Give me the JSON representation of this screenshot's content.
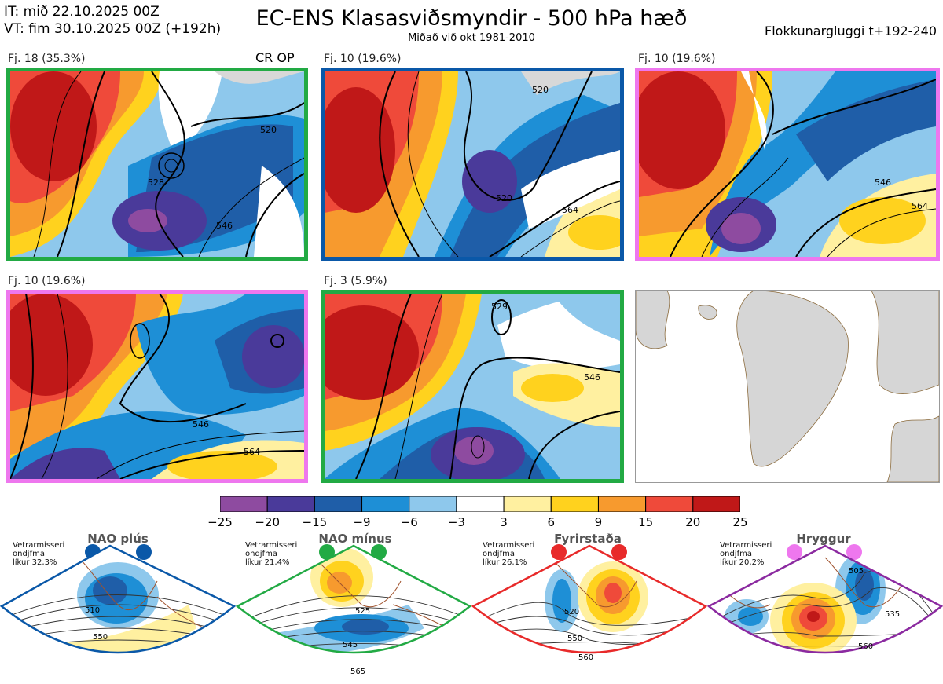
{
  "header": {
    "it_line": "IT: mið 22.10.2025 00Z",
    "vt_line": "VT: fim 30.10.2025 00Z  (+192h)",
    "title": "EC-ENS Klasasviðsmyndir - 500 hPa hæð",
    "subtitle": "Miðað við okt 1981-2010",
    "window": "Flokkunargluggi t+192-240"
  },
  "panels": [
    {
      "label": "Fj. 18 (35.3%)",
      "tag": "CR OP",
      "color": "#22aa44"
    },
    {
      "label": "Fj. 10 (19.6%)",
      "tag": "",
      "color": "#0a58a8"
    },
    {
      "label": "Fj. 10 (19.6%)",
      "tag": "",
      "color": "#ee77ee"
    },
    {
      "label": "Fj. 10 (19.6%)",
      "tag": "",
      "color": "#ee77ee"
    },
    {
      "label": "Fj. 3 (5.9%)",
      "tag": "",
      "color": "#22aa44"
    }
  ],
  "contour_labels": [
    "528",
    "546",
    "564",
    "520",
    "529"
  ],
  "colorbar": {
    "ticks": [
      "−25",
      "−20",
      "−15",
      "−9",
      "−6",
      "−3",
      "3",
      "6",
      "9",
      "15",
      "20",
      "25"
    ],
    "colors": [
      "#8e4ba0",
      "#4a3a9a",
      "#1f5ea8",
      "#1e8fd6",
      "#8ec8ec",
      "#ffffff",
      "#fff0a0",
      "#ffd21e",
      "#f79a2e",
      "#ef4a3a",
      "#c01818"
    ]
  },
  "regimes": [
    {
      "name": "NAO plús",
      "info": [
        "Vetrarmisseri",
        "ondjfma",
        "líkur 32,3%"
      ],
      "color": "#0a58a8",
      "labels": [
        "510",
        "550"
      ]
    },
    {
      "name": "NAO mínus",
      "info": [
        "Vetrarmisseri",
        "ondjfma",
        "líkur 21,4%"
      ],
      "color": "#22aa44",
      "labels": [
        "525",
        "545",
        "565"
      ]
    },
    {
      "name": "Fyrirstaða",
      "info": [
        "Vetrarmisseri",
        "ondjfma",
        "líkur 26,1%"
      ],
      "color": "#e82a2a",
      "labels": [
        "520",
        "550",
        "560"
      ]
    },
    {
      "name": "Hryggur",
      "info": [
        "Vetrarmisseri",
        "ondjfma",
        "líkur 20,2%"
      ],
      "color": "#ee77ee",
      "labels": [
        "505",
        "535",
        "560"
      ]
    }
  ]
}
